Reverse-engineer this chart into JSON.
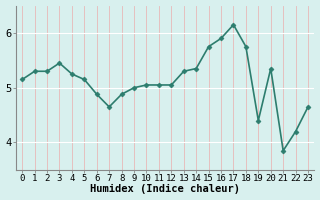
{
  "x": [
    0,
    1,
    2,
    3,
    4,
    5,
    6,
    7,
    8,
    9,
    10,
    11,
    12,
    13,
    14,
    15,
    16,
    17,
    18,
    19,
    20,
    21,
    22,
    23
  ],
  "y": [
    5.15,
    5.3,
    5.3,
    5.45,
    5.25,
    5.15,
    4.88,
    4.65,
    4.88,
    5.0,
    5.05,
    5.05,
    5.05,
    5.3,
    5.35,
    5.75,
    5.9,
    6.15,
    5.75,
    4.4,
    5.35,
    3.85,
    4.2,
    4.65
  ],
  "line_color": "#2d7d6e",
  "marker": "D",
  "marker_size": 2.5,
  "bg_color": "#d8f0ee",
  "hgrid_color": "#ffffff",
  "vgrid_color": "#e8b8b8",
  "xlabel": "Humidex (Indice chaleur)",
  "ylim": [
    3.5,
    6.5
  ],
  "xlim": [
    -0.5,
    23.5
  ],
  "yticks": [
    4,
    5,
    6
  ],
  "xticks": [
    0,
    1,
    2,
    3,
    4,
    5,
    6,
    7,
    8,
    9,
    10,
    11,
    12,
    13,
    14,
    15,
    16,
    17,
    18,
    19,
    20,
    21,
    22,
    23
  ],
  "tick_fontsize": 6.5,
  "xlabel_fontsize": 7.5,
  "spine_color": "#888888",
  "linewidth": 1.2
}
